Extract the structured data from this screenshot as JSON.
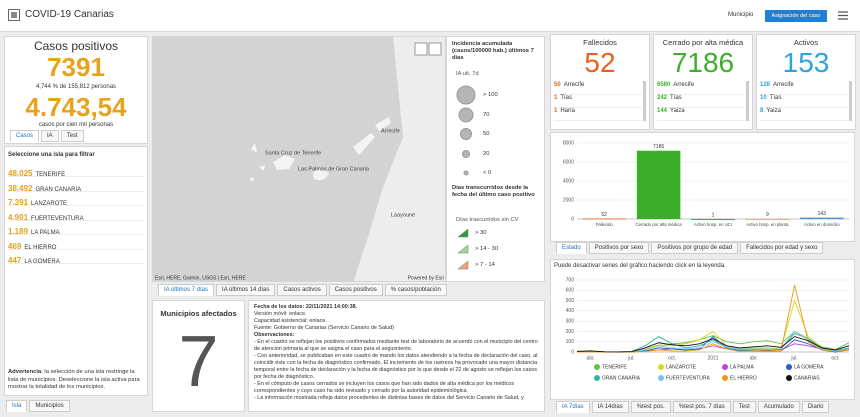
{
  "header": {
    "title": "COVID-19 Canarias",
    "buttons": [
      "Municipio",
      "Asignación del caso"
    ]
  },
  "summary": {
    "title": "Casos positivos",
    "count": "7391",
    "percent_line": "4,744 % de 155,812 personas",
    "rate": "4.743,54",
    "rate_label": "casos por cien mil personas",
    "tabs": [
      "Casos",
      "IA",
      "Test"
    ]
  },
  "islands": {
    "title": "Seleccione una isla para filtrar",
    "rows": [
      {
        "count": "48.025",
        "name": "TENERIFE"
      },
      {
        "count": "38.492",
        "name": "GRAN CANARIA"
      },
      {
        "count": "7.391",
        "name": "LANZAROTE"
      },
      {
        "count": "4.901",
        "name": "FUERTEVENTURA"
      },
      {
        "count": "1.189",
        "name": "LA PALMA"
      },
      {
        "count": "469",
        "name": "EL HIERRO"
      },
      {
        "count": "447",
        "name": "LA GOMERA"
      }
    ],
    "warning_label": "Advertencia",
    "warning": ": la selección de una isla restringe la lista de municipios. Deseleccione la isla activa para mostrar la totalidad de los municipios.",
    "tabs": [
      "Isla",
      "Municipios"
    ]
  },
  "map": {
    "places": [
      "Arrecife",
      "Santa Cruz de Tenerife",
      "Las Palmas de Gran Canaria",
      "Laayoune"
    ],
    "attribution": "Esri, HERE, Garmin, USGS | Esri, HERE",
    "powered": "Powered by Esri",
    "legend_ia": {
      "title": "Incidencia acumulada (casos/100000 hab.) últimos 7 días",
      "subtitle": "IA ult. 7d",
      "items": [
        "> 100",
        "70",
        "50",
        "20",
        "< 0"
      ]
    },
    "legend_days": {
      "title": "Días transcurridos desde la fecha del último caso positivo",
      "subtitle": "Días trascurridos sin CV",
      "items": [
        "> 30",
        "> 14 - 30",
        "> 7 - 14"
      ]
    },
    "tabs": [
      "IA últimos 7 días",
      "IA últimos 14 días",
      "Casos activos",
      "Casos positivos",
      "% casos/población"
    ]
  },
  "municipalities": {
    "title": "Municipios afectados",
    "count": "7"
  },
  "info": {
    "lines": [
      "Fecha de los datos: 22/11/2021 14:00:38.",
      "Versión móvil: enlace.",
      "Capacidad asistencial: enlace.",
      "Fuente: Gobierno de Canarias (Servicio Canario de Salud)",
      "Observaciones:",
      "- En el cuadro se reflejan los positivos confirmados mediante test de laboratorio de acuerdo con el municipio del centro de atención primaria al que se asigna el caso para el seguimiento.",
      "- Con anterioridad, se publicaban en este cuadro de mando los datos atendiendo a la fecha de declaración del caso, al coincidir éste con la fecha de diagnóstico confirmado. El incremento de los rastreos ha provocado una mayor distancia temporal entre la fecha de declaración y la fecha de diagnóstico por lo que desde el 22 de agosto se reflejan los casos por fecha de diagnóstico.",
      "- En el cómputo de casos cerrados se incluyen los casos que han sido dados de alta médica por los médicos correspondientes y cuyo caso ha sido revisado y cerrado por la autoridad epidemiológica.",
      "- La información mostrada refleja datos procedentes de distintas bases de datos del Servicio Canario de Salud, y"
    ]
  },
  "cards": [
    {
      "title": "Fallecidos",
      "value": "52",
      "color": "#e8601c",
      "rows": [
        {
          "count": "50",
          "name": "Arrecife"
        },
        {
          "count": "1",
          "name": "Tías"
        },
        {
          "count": "1",
          "name": "Haría"
        }
      ]
    },
    {
      "title": "Cerrado por alta médica",
      "value": "7186",
      "color": "#3dae2b",
      "rows": [
        {
          "count": "6580",
          "name": "Arrecife"
        },
        {
          "count": "242",
          "name": "Tías"
        },
        {
          "count": "144",
          "name": "Yaiza"
        }
      ]
    },
    {
      "title": "Activos",
      "value": "153",
      "color": "#2aa6d9",
      "rows": [
        {
          "count": "128",
          "name": "Arrecife"
        },
        {
          "count": "10",
          "name": "Tías"
        },
        {
          "count": "8",
          "name": "Yaiza"
        }
      ]
    }
  ],
  "status_chart": {
    "type": "bar",
    "categories": [
      "Fallecido",
      "Cerrado por alta médica",
      "Activo hosp. en UCI",
      "Activo hosp. en planta",
      "Activo en domicilio"
    ],
    "values": [
      52,
      7186,
      1,
      9,
      143
    ],
    "colors": [
      "#e8601c",
      "#3dae2b",
      "#b03a2e",
      "#e89a3c",
      "#4a90d6"
    ],
    "ylim": [
      0,
      8000
    ],
    "yticks": [
      0,
      2000,
      4000,
      6000,
      8000
    ],
    "grid": true,
    "tabs": [
      "Estado",
      "Positivos por sexo",
      "Positivos por grupo de edad",
      "Fallecidos por edad y sexo"
    ]
  },
  "trend_chart": {
    "type": "line",
    "note": "Puede desactivar series del gráfico haciendo click en la leyenda.",
    "categories": [
      null,
      "abr.",
      null,
      null,
      "jul.",
      null,
      null,
      "oct.",
      null,
      null,
      "2021",
      null,
      null,
      "abr.",
      null,
      null,
      "jul.",
      null,
      null,
      "oct.",
      null
    ],
    "ylim": [
      0,
      700
    ],
    "yticks": [
      0,
      100,
      200,
      300,
      400,
      500,
      600,
      700
    ],
    "grid": true,
    "series": [
      {
        "name": "TENERIFE",
        "color": "#5ec43c",
        "values": [
          8,
          12,
          2,
          1,
          2,
          30,
          60,
          80,
          90,
          120,
          160,
          100,
          80,
          100,
          110,
          80,
          200,
          130,
          50,
          25,
          90
        ]
      },
      {
        "name": "LANZAROTE",
        "color": "#d8d81e",
        "values": [
          6,
          12,
          3,
          1,
          5,
          30,
          70,
          60,
          80,
          120,
          200,
          60,
          30,
          40,
          40,
          30,
          500,
          150,
          40,
          20,
          60
        ]
      },
      {
        "name": "LA PALMA",
        "color": "#c040e0",
        "values": [
          2,
          4,
          1,
          0,
          1,
          10,
          20,
          30,
          20,
          30,
          60,
          30,
          10,
          20,
          30,
          20,
          80,
          60,
          30,
          10,
          30
        ]
      },
      {
        "name": "LA GOMERA",
        "color": "#2a5ccf",
        "values": [
          0,
          0,
          0,
          0,
          0,
          10,
          40,
          30,
          20,
          30,
          150,
          40,
          10,
          10,
          10,
          10,
          120,
          80,
          20,
          0,
          20
        ]
      },
      {
        "name": "GRAN CANARIA",
        "color": "#2cb89f",
        "values": [
          4,
          8,
          2,
          1,
          4,
          60,
          150,
          80,
          40,
          60,
          120,
          40,
          20,
          20,
          30,
          30,
          180,
          130,
          40,
          15,
          40
        ]
      },
      {
        "name": "FUERTEVENTURA",
        "color": "#7ec2ea",
        "values": [
          3,
          6,
          1,
          0,
          3,
          20,
          60,
          40,
          30,
          40,
          100,
          50,
          30,
          30,
          30,
          30,
          200,
          120,
          30,
          10,
          30
        ]
      },
      {
        "name": "EL HIERRO",
        "color": "#f0981a",
        "values": [
          0,
          0,
          0,
          0,
          0,
          5,
          20,
          10,
          10,
          20,
          80,
          30,
          5,
          10,
          20,
          10,
          650,
          100,
          20,
          5,
          20
        ]
      },
      {
        "name": "CANARIAS",
        "color": "#111111",
        "values": [
          5,
          10,
          2,
          1,
          3,
          40,
          90,
          70,
          60,
          80,
          130,
          60,
          40,
          50,
          60,
          45,
          150,
          110,
          40,
          20,
          60
        ]
      }
    ],
    "tabs": [
      "IA 7días",
      "IA 14días",
      "%test pos.",
      "%test pos. 7 días",
      "Test",
      "Acumulado",
      "Diario"
    ]
  }
}
